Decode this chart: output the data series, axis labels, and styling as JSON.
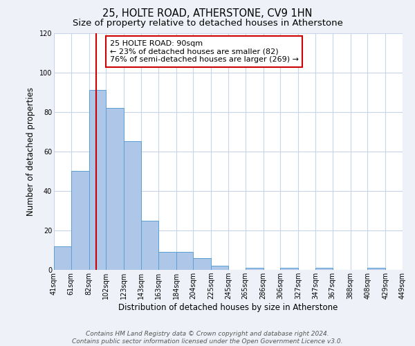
{
  "title": "25, HOLTE ROAD, ATHERSTONE, CV9 1HN",
  "subtitle": "Size of property relative to detached houses in Atherstone",
  "xlabel": "Distribution of detached houses by size in Atherstone",
  "ylabel": "Number of detached properties",
  "bar_edges": [
    41,
    61,
    82,
    102,
    123,
    143,
    163,
    184,
    204,
    225,
    245,
    265,
    286,
    306,
    327,
    347,
    367,
    388,
    408,
    429,
    449
  ],
  "bar_heights": [
    12,
    50,
    91,
    82,
    65,
    25,
    9,
    9,
    6,
    2,
    0,
    1,
    0,
    1,
    0,
    1,
    0,
    0,
    1,
    0
  ],
  "bar_color": "#aec6e8",
  "bar_edge_color": "#5a9fd4",
  "vline_x": 90,
  "vline_color": "#cc0000",
  "annotation_line1": "25 HOLTE ROAD: 90sqm",
  "annotation_line2": "← 23% of detached houses are smaller (82)",
  "annotation_line3": "76% of semi-detached houses are larger (269) →",
  "annotation_box_facecolor": "white",
  "annotation_box_edgecolor": "#cc0000",
  "ylim": [
    0,
    120
  ],
  "yticks": [
    0,
    20,
    40,
    60,
    80,
    100,
    120
  ],
  "tick_labels": [
    "41sqm",
    "61sqm",
    "82sqm",
    "102sqm",
    "123sqm",
    "143sqm",
    "163sqm",
    "184sqm",
    "204sqm",
    "225sqm",
    "245sqm",
    "265sqm",
    "286sqm",
    "306sqm",
    "327sqm",
    "347sqm",
    "367sqm",
    "388sqm",
    "408sqm",
    "429sqm",
    "449sqm"
  ],
  "footer1": "Contains HM Land Registry data © Crown copyright and database right 2024.",
  "footer2": "Contains public sector information licensed under the Open Government Licence v3.0.",
  "bg_color": "#eef2f8",
  "plot_bg_color": "#ffffff",
  "grid_color": "#c8d4e8",
  "title_fontsize": 10.5,
  "subtitle_fontsize": 9.5,
  "axis_label_fontsize": 8.5,
  "tick_fontsize": 7,
  "annotation_fontsize": 8,
  "footer_fontsize": 6.5
}
